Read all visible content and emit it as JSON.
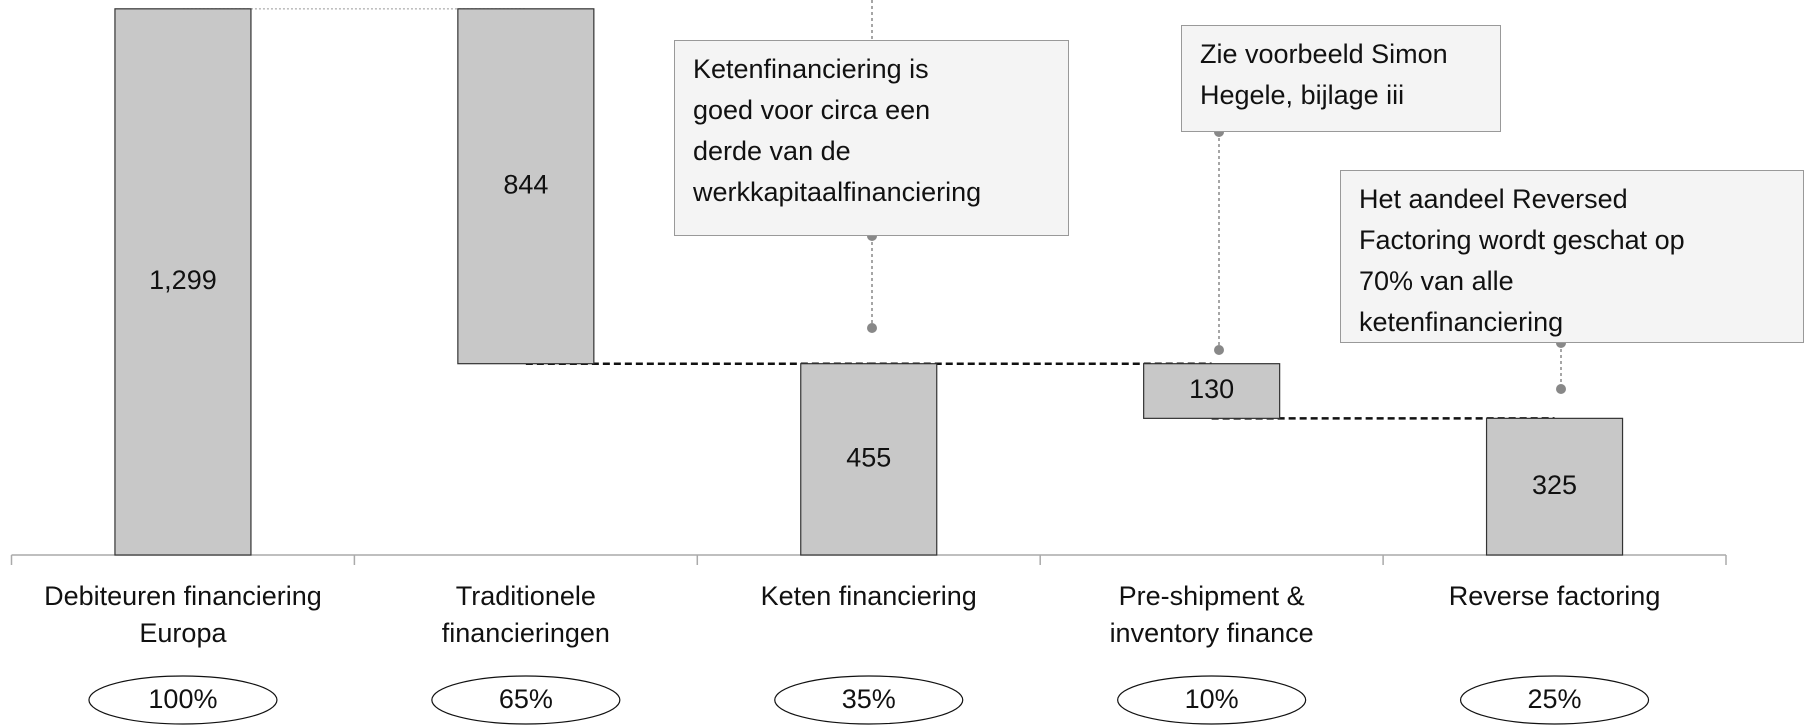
{
  "chart_data": {
    "type": "waterfall",
    "categories": [
      "Debiteuren financiering\nEuropa",
      "Traditionele\nfinancieringen",
      "Keten financiering",
      "Pre-shipment &\ninventory finance",
      "Reverse factoring"
    ],
    "values": [
      1299,
      844,
      455,
      130,
      325
    ],
    "value_labels": [
      "1,299",
      "844",
      "455",
      "130",
      "325"
    ],
    "measure": [
      "total",
      "decrease",
      "total",
      "decrease",
      "total"
    ],
    "shares": [
      100,
      65,
      35,
      10,
      25
    ],
    "share_labels": [
      "100%",
      "65%",
      "35%",
      "10%",
      "25%"
    ],
    "color": "#c8c8c8",
    "ylim": [
      0,
      1320
    ],
    "annotations": [
      {
        "text": "Ketenfinanciering is\ngoed voor circa een\nderde van de\nwerkkapitaalfinanciering"
      },
      {
        "text": "Zie voorbeeld Simon\nHegele, bijlage iii"
      },
      {
        "text": "Het aandeel Reversed\nFactoring wordt geschat op\n70% van alle\nketenfinanciering"
      }
    ]
  }
}
